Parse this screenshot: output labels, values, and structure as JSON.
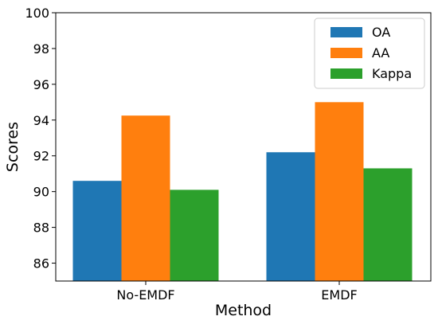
{
  "chart_data": {
    "type": "bar",
    "categories": [
      "No-EMDF",
      "EMDF"
    ],
    "series": [
      {
        "name": "OA",
        "values": [
          90.6,
          92.2
        ],
        "color": "#1f77b4"
      },
      {
        "name": "AA",
        "values": [
          94.25,
          95.0
        ],
        "color": "#ff7f0e"
      },
      {
        "name": "Kappa",
        "values": [
          90.1,
          91.3
        ],
        "color": "#2ca02c"
      }
    ],
    "xlabel": "Method",
    "ylabel": "Scores",
    "ylim": [
      85,
      100
    ],
    "yticks": [
      86,
      88,
      90,
      92,
      94,
      96,
      98,
      100
    ],
    "grid": false,
    "legend_position": "top-right"
  }
}
